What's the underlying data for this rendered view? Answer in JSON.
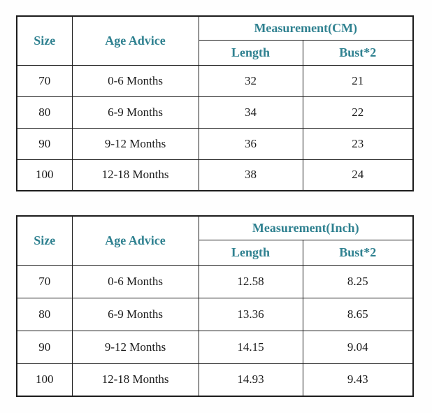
{
  "page": {
    "background_color": "#ffffff",
    "header_text_color": "#2f8190",
    "body_text_color": "#1b1b1b",
    "border_color": "#1c1c1c"
  },
  "tables": [
    {
      "id": "cm",
      "headers": {
        "size": "Size",
        "age": "Age Advice",
        "measurement": "Measurement(CM)",
        "length": "Length",
        "bust": "Bust*2"
      },
      "rows": [
        {
          "size": "70",
          "age": "0-6 Months",
          "length": "32",
          "bust": "21"
        },
        {
          "size": "80",
          "age": "6-9 Months",
          "length": "34",
          "bust": "22"
        },
        {
          "size": "90",
          "age": "9-12 Months",
          "length": "36",
          "bust": "23"
        },
        {
          "size": "100",
          "age": "12-18 Months",
          "length": "38",
          "bust": "24"
        }
      ]
    },
    {
      "id": "inch",
      "headers": {
        "size": "Size",
        "age": "Age Advice",
        "measurement": "Measurement(Inch)",
        "length": "Length",
        "bust": "Bust*2"
      },
      "rows": [
        {
          "size": "70",
          "age": "0-6 Months",
          "length": "12.58",
          "bust": "8.25"
        },
        {
          "size": "80",
          "age": "6-9 Months",
          "length": "13.36",
          "bust": "8.65"
        },
        {
          "size": "90",
          "age": "9-12 Months",
          "length": "14.15",
          "bust": "9.04"
        },
        {
          "size": "100",
          "age": "12-18 Months",
          "length": "14.93",
          "bust": "9.43"
        }
      ]
    }
  ]
}
